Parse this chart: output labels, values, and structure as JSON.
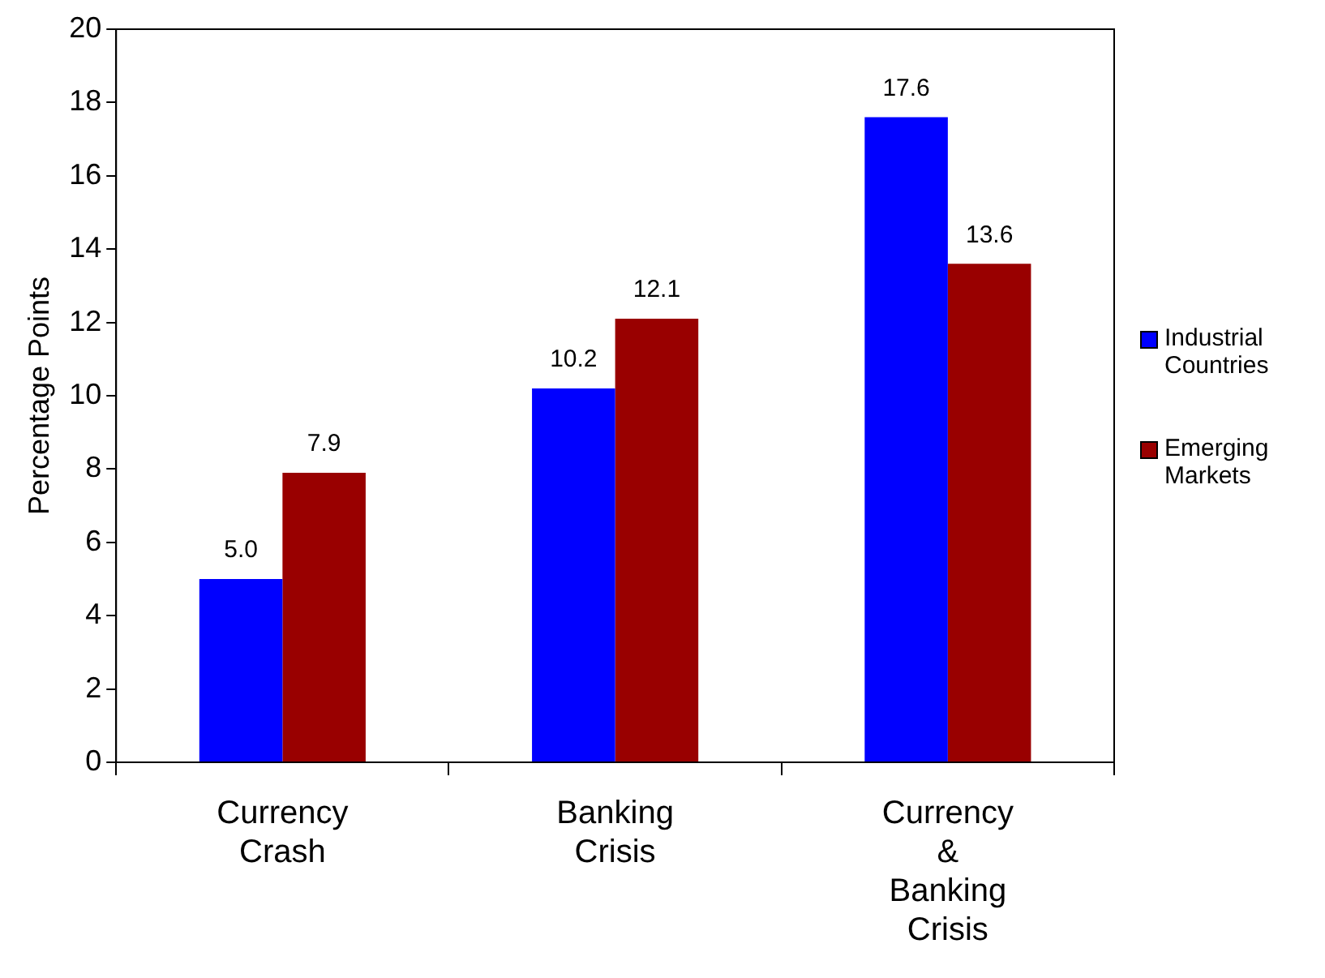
{
  "chart_data": {
    "type": "bar",
    "ylabel": "Percentage Points",
    "categories": [
      "Currency Crash",
      "Banking Crisis",
      "Currency & Banking Crisis"
    ],
    "series": [
      {
        "name": "Industrial Countries",
        "color": "#0000ff",
        "values": [
          5.0,
          10.2,
          17.6
        ],
        "value_labels": [
          "5.0",
          "10.2",
          "17.6"
        ]
      },
      {
        "name": "Emerging Markets",
        "color": "#990000",
        "values": [
          7.9,
          12.1,
          13.6
        ],
        "value_labels": [
          "7.9",
          "12.1",
          "13.6"
        ]
      }
    ],
    "ylim": [
      0,
      20
    ],
    "yticks": [
      0,
      2,
      4,
      6,
      8,
      10,
      12,
      14,
      16,
      18,
      20
    ],
    "grid": false,
    "legend": "right"
  }
}
